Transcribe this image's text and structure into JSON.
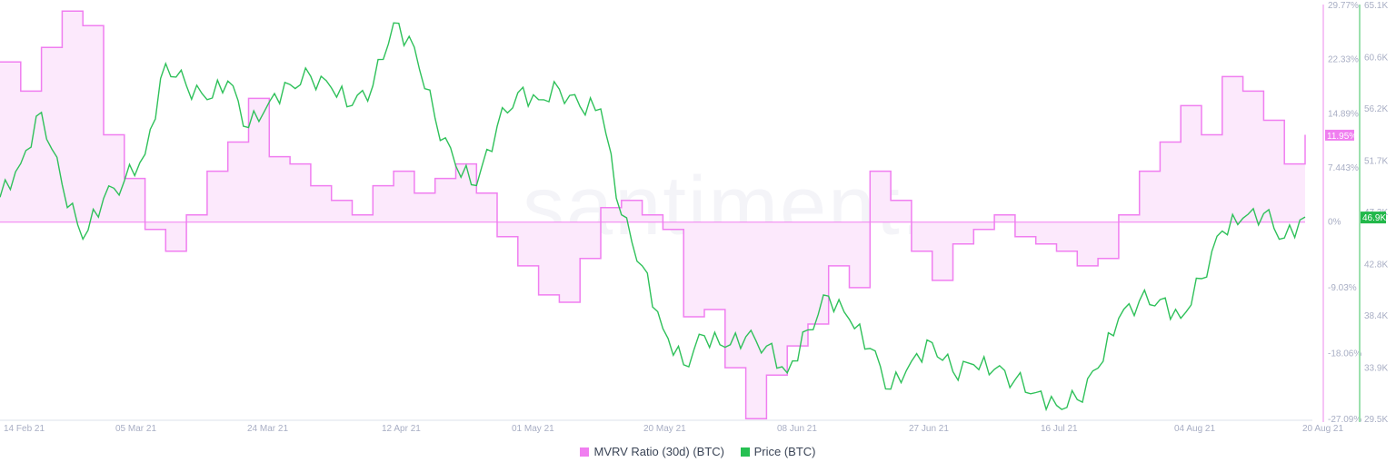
{
  "chart_data": {
    "type": "line",
    "title": "",
    "watermark": "santiment.",
    "x_ticks": [
      "14 Feb 21",
      "05 Mar 21",
      "24 Mar 21",
      "12 Apr 21",
      "01 May 21",
      "20 May 21",
      "08 Jun 21",
      "27 Jun 21",
      "16 Jul 21",
      "04 Aug 21",
      "20 Aug 21"
    ],
    "y_left": {
      "label": "MVRV Ratio (30d) (BTC)",
      "ticks": [
        "29.77%",
        "22.33%",
        "14.89%",
        "7.443%",
        "0%",
        "-9.03%",
        "-18.06%",
        "-27.09%"
      ],
      "range": [
        -27.09,
        29.77
      ],
      "current_badge": "11.95%"
    },
    "y_right": {
      "label": "Price (BTC)",
      "ticks": [
        "65.1K",
        "60.6K",
        "56.2K",
        "51.7K",
        "47.3K",
        "42.8K",
        "38.4K",
        "33.9K",
        "29.5K"
      ],
      "range": [
        29.5,
        65.1
      ],
      "current_badge": "46.9K"
    },
    "series": [
      {
        "name": "MVRV Ratio (30d) (BTC)",
        "type": "area-step",
        "color": "#f07ef0",
        "fill": "#fce9fc",
        "x": [
          "14 Feb",
          "17 Feb",
          "20 Feb",
          "23 Feb",
          "26 Feb",
          "01 Mar",
          "04 Mar",
          "07 Mar",
          "10 Mar",
          "13 Mar",
          "16 Mar",
          "19 Mar",
          "22 Mar",
          "25 Mar",
          "28 Mar",
          "31 Mar",
          "03 Apr",
          "06 Apr",
          "09 Apr",
          "12 Apr",
          "15 Apr",
          "18 Apr",
          "21 Apr",
          "24 Apr",
          "27 Apr",
          "30 Apr",
          "03 May",
          "06 May",
          "09 May",
          "12 May",
          "15 May",
          "18 May",
          "21 May",
          "24 May",
          "27 May",
          "30 May",
          "02 Jun",
          "05 Jun",
          "08 Jun",
          "11 Jun",
          "14 Jun",
          "17 Jun",
          "20 Jun",
          "23 Jun",
          "26 Jun",
          "29 Jun",
          "02 Jul",
          "05 Jul",
          "08 Jul",
          "11 Jul",
          "14 Jul",
          "17 Jul",
          "20 Jul",
          "23 Jul",
          "26 Jul",
          "29 Jul",
          "01 Aug",
          "04 Aug",
          "07 Aug",
          "10 Aug",
          "13 Aug",
          "16 Aug",
          "19 Aug",
          "21 Aug"
        ],
        "values": [
          22,
          18,
          24,
          29,
          27,
          12,
          6,
          -1,
          -4,
          1,
          7,
          11,
          17,
          9,
          8,
          5,
          3,
          1,
          5,
          7,
          4,
          6,
          8,
          4,
          -2,
          -6,
          -10,
          -11,
          -5,
          2,
          3,
          1,
          -1,
          -13,
          -12,
          -20,
          -27,
          -21,
          -17,
          -14,
          -6,
          -9,
          7,
          3,
          -4,
          -8,
          -3,
          -1,
          1,
          -2,
          -3,
          -4,
          -6,
          -5,
          1,
          7,
          11,
          16,
          12,
          20,
          18,
          14,
          8,
          12
        ]
      },
      {
        "name": "Price (BTC)",
        "type": "line",
        "color": "#2fc15a",
        "x": [
          "14 Feb",
          "17 Feb",
          "20 Feb",
          "23 Feb",
          "26 Feb",
          "01 Mar",
          "04 Mar",
          "07 Mar",
          "10 Mar",
          "13 Mar",
          "16 Mar",
          "19 Mar",
          "22 Mar",
          "25 Mar",
          "28 Mar",
          "31 Mar",
          "03 Apr",
          "06 Apr",
          "09 Apr",
          "12 Apr",
          "15 Apr",
          "18 Apr",
          "21 Apr",
          "24 Apr",
          "27 Apr",
          "30 Apr",
          "03 May",
          "06 May",
          "09 May",
          "12 May",
          "15 May",
          "18 May",
          "21 May",
          "24 May",
          "27 May",
          "30 May",
          "02 Jun",
          "05 Jun",
          "08 Jun",
          "11 Jun",
          "14 Jun",
          "17 Jun",
          "20 Jun",
          "23 Jun",
          "26 Jun",
          "29 Jun",
          "02 Jul",
          "05 Jul",
          "08 Jul",
          "11 Jul",
          "14 Jul",
          "17 Jul",
          "20 Jul",
          "23 Jul",
          "26 Jul",
          "29 Jul",
          "01 Aug",
          "04 Aug",
          "07 Aug",
          "10 Aug",
          "13 Aug",
          "16 Aug",
          "19 Aug",
          "21 Aug"
        ],
        "values": [
          48.6,
          51.5,
          55.9,
          49.7,
          45.0,
          48.5,
          50.0,
          52.3,
          60.1,
          58.2,
          57.0,
          58.6,
          54.6,
          56.8,
          58.3,
          59.0,
          58.0,
          56.5,
          58.2,
          63.6,
          61.5,
          55.4,
          51.3,
          49.6,
          54.7,
          57.6,
          57.0,
          57.9,
          56.4,
          56.2,
          47.1,
          42.7,
          37.3,
          34.2,
          36.7,
          35.7,
          36.6,
          35.8,
          33.5,
          37.2,
          40.1,
          38.1,
          35.6,
          32.1,
          34.5,
          36.1,
          33.6,
          34.2,
          33.8,
          32.9,
          31.8,
          30.7,
          31.2,
          33.9,
          38.2,
          39.7,
          39.8,
          38.2,
          41.6,
          45.7,
          46.8,
          47.2,
          45.1,
          46.9
        ]
      }
    ],
    "legend_position": "bottom",
    "grid": false
  },
  "legend": {
    "items": [
      {
        "label": "MVRV Ratio (30d) (BTC)",
        "color": "#f07ef0"
      },
      {
        "label": "Price (BTC)",
        "color": "#26c052"
      }
    ]
  },
  "colors": {
    "mvrv_line": "#f07ef0",
    "mvrv_fill": "#fce9fc",
    "mvrv_axis": "#f6c4f6",
    "price_line": "#2fc15a",
    "price_axis": "#9be0ad",
    "mvrv_badge": "#f07ef0",
    "price_badge": "#22b84a",
    "tick_text": "#a8aec4"
  }
}
